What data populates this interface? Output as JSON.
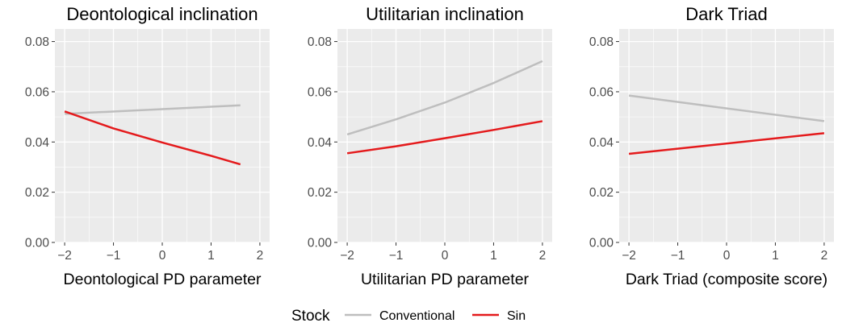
{
  "chart_data": [
    {
      "type": "line",
      "title": "Deontological inclination",
      "xlabel": "Deontological PD parameter",
      "ylabel": "",
      "xlim": [
        -2.2,
        2.2
      ],
      "ylim": [
        0,
        0.085
      ],
      "xticks": [
        -2,
        -1,
        0,
        1,
        2
      ],
      "xtick_labels": [
        "−2",
        "−1",
        "0",
        "1",
        "2"
      ],
      "yticks": [
        0,
        0.02,
        0.04,
        0.06,
        0.08
      ],
      "ytick_labels": [
        "0.00",
        "0.02",
        "0.04",
        "0.06",
        "0.08"
      ],
      "grid": true,
      "series": [
        {
          "name": "Conventional",
          "color": "#bebebe",
          "x": [
            -2,
            1.6
          ],
          "y": [
            0.0512,
            0.0546
          ]
        },
        {
          "name": "Sin",
          "color": "#e41a1c",
          "x": [
            -2,
            -1,
            0,
            1,
            1.6
          ],
          "y": [
            0.0522,
            0.0454,
            0.0398,
            0.0345,
            0.0311
          ]
        }
      ]
    },
    {
      "type": "line",
      "title": "Utilitarian inclination",
      "xlabel": "Utilitarian PD parameter",
      "ylabel": "",
      "xlim": [
        -2.2,
        2.2
      ],
      "ylim": [
        0,
        0.085
      ],
      "xticks": [
        -2,
        -1,
        0,
        1,
        2
      ],
      "xtick_labels": [
        "−2",
        "−1",
        "0",
        "1",
        "2"
      ],
      "yticks": [
        0,
        0.02,
        0.04,
        0.06,
        0.08
      ],
      "ytick_labels": [
        "0.00",
        "0.02",
        "0.04",
        "0.06",
        "0.08"
      ],
      "grid": true,
      "series": [
        {
          "name": "Conventional",
          "color": "#bebebe",
          "x": [
            -2,
            -1,
            0,
            1,
            2
          ],
          "y": [
            0.043,
            0.049,
            0.0557,
            0.0635,
            0.0722
          ]
        },
        {
          "name": "Sin",
          "color": "#e41a1c",
          "x": [
            -2,
            -1,
            0,
            1,
            2
          ],
          "y": [
            0.0355,
            0.0383,
            0.0415,
            0.0448,
            0.0483
          ]
        }
      ]
    },
    {
      "type": "line",
      "title": "Dark Triad",
      "xlabel": "Dark Triad (composite score)",
      "ylabel": "",
      "xlim": [
        -2.2,
        2.2
      ],
      "ylim": [
        0,
        0.085
      ],
      "xticks": [
        -2,
        -1,
        0,
        1,
        2
      ],
      "xtick_labels": [
        "−2",
        "−1",
        "0",
        "1",
        "2"
      ],
      "yticks": [
        0,
        0.02,
        0.04,
        0.06,
        0.08
      ],
      "ytick_labels": [
        "0.00",
        "0.02",
        "0.04",
        "0.06",
        "0.08"
      ],
      "grid": true,
      "series": [
        {
          "name": "Conventional",
          "color": "#bebebe",
          "x": [
            -2,
            2
          ],
          "y": [
            0.0585,
            0.0483
          ]
        },
        {
          "name": "Sin",
          "color": "#e41a1c",
          "x": [
            -2,
            2
          ],
          "y": [
            0.0353,
            0.0435
          ]
        }
      ]
    }
  ],
  "legend": {
    "title": "Stock",
    "position": "bottom",
    "items": [
      {
        "label": "Conventional",
        "color": "#bebebe"
      },
      {
        "label": "Sin",
        "color": "#e41a1c"
      }
    ]
  },
  "colors": {
    "panel_bg": "#ebebeb",
    "grid": "#ffffff",
    "text": "#000000",
    "tick_text": "#4d4d4d"
  }
}
